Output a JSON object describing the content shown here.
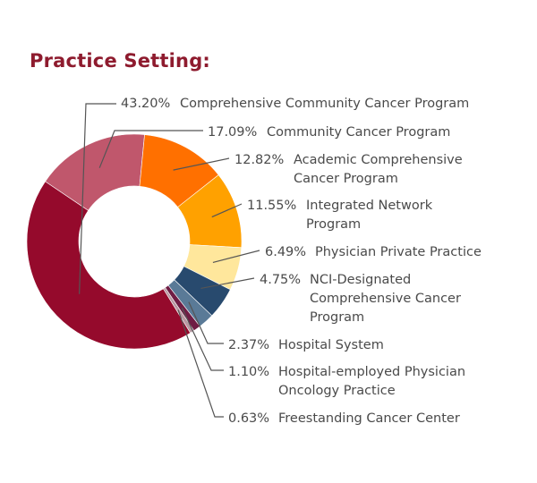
{
  "chart_data": {
    "type": "pie",
    "title": "Practice Setting:",
    "slices": [
      {
        "label": "43.20%",
        "name": "Comprehensive Community Cancer Program",
        "value": 43.2,
        "color": "#950a2c"
      },
      {
        "label": "17.09%",
        "name": "Community Cancer Program",
        "value": 17.09,
        "color": "#c0576c"
      },
      {
        "label": "12.82%",
        "name": "Academic Comprehensive Cancer Program",
        "value": 12.82,
        "color": "#ff7000"
      },
      {
        "label": "11.55%",
        "name": "Integrated Network Program",
        "value": 11.55,
        "color": "#ffa100"
      },
      {
        "label": "6.49%",
        "name": "Physician Private Practice",
        "value": 6.49,
        "color": "#ffe79c"
      },
      {
        "label": "4.75%",
        "name": "NCI-Designated Comprehensive Cancer Program",
        "value": 4.75,
        "color": "#284a6e"
      },
      {
        "label": "2.37%",
        "name": "Hospital System",
        "value": 2.37,
        "color": "#5a7a97"
      },
      {
        "label": "1.10%",
        "name": "Hospital-employed Physician Oncology Practice",
        "value": 1.1,
        "color": "#6f1d44"
      },
      {
        "label": "0.63%",
        "name": "Freestanding Cancer Center",
        "value": 0.63,
        "color": "#b899a2"
      }
    ]
  }
}
